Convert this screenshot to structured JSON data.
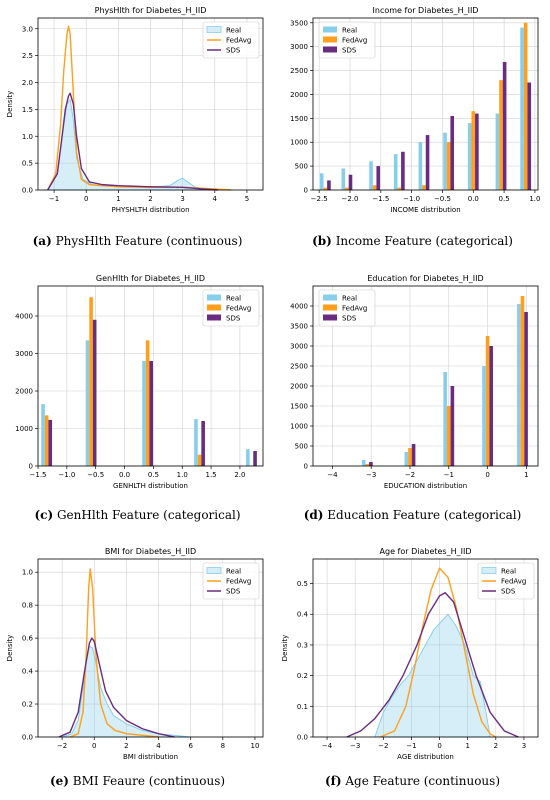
{
  "colors": {
    "real": "#87ceeb",
    "fedavg": "#ff9f1c",
    "sds": "#6a2c80"
  },
  "captions": [
    {
      "tag": "(a)",
      "text": "PhysHlth Feature (continuous)"
    },
    {
      "tag": "(b)",
      "text": "Income Feature (categorical)"
    },
    {
      "tag": "(c)",
      "text": "GenHlth Feature (categorical)"
    },
    {
      "tag": "(d)",
      "text": "Education Feature (categorical)"
    },
    {
      "tag": "(e)",
      "text": "BMI Feaure (continuous)"
    },
    {
      "tag": "(f)",
      "text": "Age Feature (continuous)"
    }
  ],
  "chart_data": [
    {
      "type": "area",
      "title": "PhysHlth for Diabetes_H_IID",
      "xlabel": "PHYSHLTH distribution",
      "ylabel": "Density",
      "xlim": [
        -1.5,
        5.5
      ],
      "ylim": [
        0,
        3.2
      ],
      "xticks": [
        -1,
        0,
        1,
        2,
        3,
        4,
        5
      ],
      "yticks": [
        0.0,
        0.5,
        1.0,
        1.5,
        2.0,
        2.5,
        3.0
      ],
      "legend": "top-right",
      "series": [
        {
          "name": "Real",
          "kind": "fill",
          "x": [
            -1.2,
            -0.9,
            -0.75,
            -0.6,
            -0.5,
            -0.4,
            -0.3,
            -0.1,
            0.2,
            0.6,
            1.2,
            2.0,
            2.6,
            2.85,
            3.0,
            3.15,
            3.4,
            4.0,
            4.6
          ],
          "y": [
            0,
            0.3,
            1.0,
            1.6,
            1.68,
            1.3,
            0.6,
            0.2,
            0.1,
            0.08,
            0.07,
            0.06,
            0.08,
            0.18,
            0.22,
            0.15,
            0.05,
            0.01,
            0
          ]
        },
        {
          "name": "FedAvg",
          "kind": "line",
          "x": [
            -1.2,
            -0.95,
            -0.8,
            -0.7,
            -0.6,
            -0.55,
            -0.5,
            -0.4,
            -0.3,
            -0.15,
            0.1,
            0.5,
            1.0,
            2.0,
            3.0,
            4.0,
            4.5
          ],
          "y": [
            0,
            0.3,
            1.2,
            2.2,
            2.9,
            3.05,
            2.9,
            1.8,
            0.7,
            0.2,
            0.1,
            0.08,
            0.06,
            0.05,
            0.05,
            0.02,
            0
          ]
        },
        {
          "name": "SDS",
          "kind": "line",
          "x": [
            -1.2,
            -0.9,
            -0.75,
            -0.65,
            -0.55,
            -0.5,
            -0.4,
            -0.3,
            -0.15,
            0.1,
            0.5,
            1.0,
            2.0,
            3.0,
            3.6,
            4.1
          ],
          "y": [
            0,
            0.3,
            1.0,
            1.5,
            1.75,
            1.8,
            1.6,
            1.0,
            0.4,
            0.15,
            0.1,
            0.08,
            0.06,
            0.05,
            0.02,
            0
          ]
        }
      ]
    },
    {
      "type": "bar",
      "title": "Income for Diabetes_H_IID",
      "xlabel": "INCOME distribution",
      "ylabel": "",
      "xlim": [
        -2.6,
        1.05
      ],
      "ylim": [
        0,
        3600
      ],
      "xticks": [
        -2.5,
        -2.0,
        -1.5,
        -1.0,
        -0.5,
        0.0,
        0.5,
        1.0
      ],
      "yticks": [
        0,
        500,
        1000,
        1500,
        2000,
        2500,
        3000,
        3500
      ],
      "legend": "top-left",
      "categories": [
        -2.4,
        -2.05,
        -1.6,
        -1.2,
        -0.8,
        -0.4,
        0.0,
        0.45,
        0.85
      ],
      "series": [
        {
          "name": "Real",
          "values": [
            350,
            450,
            600,
            750,
            1000,
            1200,
            1400,
            1600,
            3400
          ]
        },
        {
          "name": "FedAvg",
          "values": [
            50,
            50,
            100,
            50,
            100,
            1000,
            1650,
            2300,
            3500
          ]
        },
        {
          "name": "SDS",
          "values": [
            200,
            320,
            500,
            800,
            1150,
            1550,
            1600,
            2680,
            2250
          ]
        }
      ]
    },
    {
      "type": "bar",
      "title": "GenHlth for Diabetes_H_IID",
      "xlabel": "GENHLTH distribution",
      "ylabel": "",
      "xlim": [
        -1.5,
        2.4
      ],
      "ylim": [
        0,
        4800
      ],
      "xticks": [
        -1.5,
        -1.0,
        -0.5,
        0.0,
        0.5,
        1.0,
        1.5,
        2.0
      ],
      "yticks": [
        0,
        1000,
        2000,
        3000,
        4000
      ],
      "legend": "top-right",
      "categories": [
        -1.35,
        -0.58,
        0.4,
        1.3,
        2.2
      ],
      "series": [
        {
          "name": "Real",
          "values": [
            1650,
            3350,
            2800,
            1250,
            450
          ]
        },
        {
          "name": "FedAvg",
          "values": [
            1350,
            4500,
            3350,
            300,
            0
          ]
        },
        {
          "name": "SDS",
          "values": [
            1230,
            3900,
            2800,
            1200,
            400
          ]
        }
      ]
    },
    {
      "type": "bar",
      "title": "Education for Diabetes_H_IID",
      "xlabel": "EDUCATION distribution",
      "ylabel": "",
      "xlim": [
        -4.5,
        1.3
      ],
      "ylim": [
        0,
        4500
      ],
      "xticks": [
        -4,
        -3,
        -2,
        -1,
        0,
        1
      ],
      "yticks": [
        0,
        500,
        1000,
        1500,
        2000,
        2500,
        3000,
        3500,
        4000
      ],
      "legend": "top-left",
      "categories": [
        -3.1,
        -2.0,
        -1.0,
        0.0,
        0.9
      ],
      "series": [
        {
          "name": "Real",
          "values": [
            150,
            350,
            2350,
            2500,
            4050
          ]
        },
        {
          "name": "FedAvg",
          "values": [
            50,
            450,
            1500,
            3250,
            4250
          ]
        },
        {
          "name": "SDS",
          "values": [
            100,
            550,
            2000,
            3000,
            3850
          ]
        }
      ]
    },
    {
      "type": "area",
      "title": "BMI for Diabetes_H_IID",
      "xlabel": "BMI distribution",
      "ylabel": "Density",
      "xlim": [
        -3.5,
        10.5
      ],
      "ylim": [
        0,
        1.08
      ],
      "xticks": [
        -2,
        0,
        2,
        4,
        6,
        8,
        10
      ],
      "yticks": [
        0.0,
        0.2,
        0.4,
        0.6,
        0.8,
        1.0
      ],
      "legend": "top-right",
      "series": [
        {
          "name": "Real",
          "kind": "fill",
          "x": [
            -2.0,
            -1.4,
            -1.0,
            -0.7,
            -0.5,
            -0.3,
            -0.1,
            0.1,
            0.4,
            0.8,
            1.2,
            2.0,
            3.0,
            4.0,
            5.0,
            6.0
          ],
          "y": [
            0,
            0.02,
            0.1,
            0.3,
            0.48,
            0.55,
            0.54,
            0.45,
            0.3,
            0.2,
            0.13,
            0.08,
            0.04,
            0.02,
            0.01,
            0
          ]
        },
        {
          "name": "FedAvg",
          "kind": "line",
          "x": [
            -1.5,
            -1.0,
            -0.7,
            -0.5,
            -0.35,
            -0.25,
            -0.1,
            0.1,
            0.4,
            0.8,
            1.3,
            2.0,
            3.0,
            4.0
          ],
          "y": [
            0,
            0.02,
            0.15,
            0.5,
            0.9,
            1.02,
            0.9,
            0.5,
            0.2,
            0.08,
            0.04,
            0.02,
            0.01,
            0
          ]
        },
        {
          "name": "SDS",
          "kind": "line",
          "x": [
            -2.2,
            -1.5,
            -1.0,
            -0.6,
            -0.3,
            -0.15,
            0.0,
            0.3,
            0.7,
            1.2,
            2.0,
            3.0,
            4.0,
            5.0
          ],
          "y": [
            0,
            0.03,
            0.15,
            0.4,
            0.57,
            0.6,
            0.58,
            0.45,
            0.28,
            0.18,
            0.1,
            0.05,
            0.02,
            0
          ]
        }
      ]
    },
    {
      "type": "area",
      "title": "Age for Diabetes_H_IID",
      "xlabel": "AGE distribution",
      "ylabel": "Density",
      "xlim": [
        -4.5,
        3.5
      ],
      "ylim": [
        0,
        0.58
      ],
      "xticks": [
        -4,
        -3,
        -2,
        -1,
        0,
        1,
        2,
        3
      ],
      "yticks": [
        0.0,
        0.1,
        0.2,
        0.3,
        0.4,
        0.5
      ],
      "legend": "top-right",
      "series": [
        {
          "name": "Real",
          "kind": "fill",
          "x": [
            -2.3,
            -2.0,
            -1.7,
            -1.4,
            -1.1,
            -0.8,
            -0.5,
            -0.2,
            0.1,
            0.3,
            0.6,
            0.9,
            1.2,
            1.45,
            1.65,
            1.8
          ],
          "y": [
            0,
            0.08,
            0.13,
            0.17,
            0.2,
            0.25,
            0.3,
            0.35,
            0.38,
            0.4,
            0.36,
            0.3,
            0.2,
            0.18,
            0.08,
            0
          ]
        },
        {
          "name": "FedAvg",
          "kind": "line",
          "x": [
            -2.1,
            -1.6,
            -1.2,
            -0.9,
            -0.6,
            -0.3,
            0.0,
            0.3,
            0.6,
            0.9,
            1.2,
            1.5,
            1.8,
            2.0
          ],
          "y": [
            0,
            0.02,
            0.1,
            0.22,
            0.36,
            0.48,
            0.55,
            0.52,
            0.42,
            0.28,
            0.14,
            0.05,
            0.01,
            0
          ]
        },
        {
          "name": "SDS",
          "kind": "line",
          "x": [
            -3.3,
            -2.8,
            -2.3,
            -1.8,
            -1.3,
            -0.8,
            -0.4,
            0.0,
            0.2,
            0.5,
            0.9,
            1.3,
            1.8,
            2.3,
            2.8
          ],
          "y": [
            0,
            0.02,
            0.06,
            0.12,
            0.2,
            0.3,
            0.4,
            0.46,
            0.47,
            0.44,
            0.32,
            0.2,
            0.08,
            0.02,
            0
          ]
        }
      ]
    }
  ]
}
